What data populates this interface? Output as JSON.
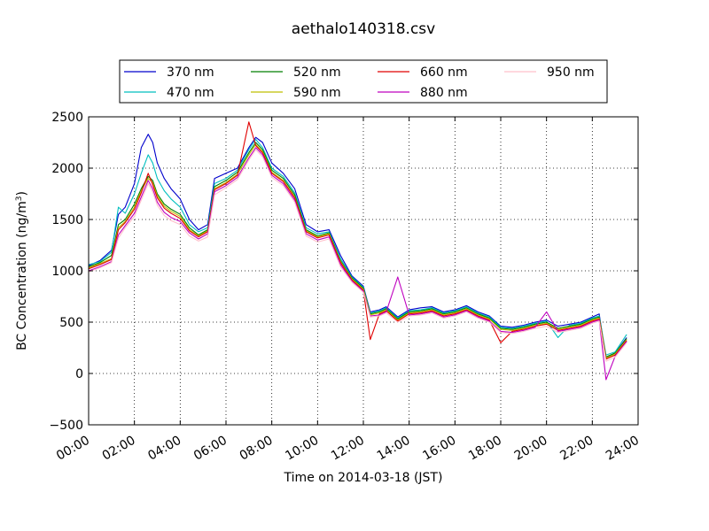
{
  "chart_data": {
    "type": "line",
    "title": "aethalo140318.csv",
    "xlabel": "Time on 2014-03-18 (JST)",
    "ylabel_main": "BC Concentration (ng/m",
    "ylabel_sup": "3",
    "ylabel_close": ")",
    "xlim": [
      0,
      24
    ],
    "ylim": [
      -500,
      2500
    ],
    "grid": true,
    "legend_position": "top",
    "x_ticks": [
      0,
      2,
      4,
      6,
      8,
      10,
      12,
      14,
      16,
      18,
      20,
      22,
      24
    ],
    "x_tick_labels": [
      "00:00",
      "02:00",
      "04:00",
      "06:00",
      "08:00",
      "10:00",
      "12:00",
      "14:00",
      "16:00",
      "18:00",
      "20:00",
      "22:00",
      "24:00"
    ],
    "y_ticks": [
      -500,
      0,
      500,
      1000,
      1500,
      2000,
      2500
    ],
    "y_tick_labels": [
      "−500",
      "0",
      "500",
      "1000",
      "1500",
      "2000",
      "2500"
    ],
    "series": [
      {
        "name": "370 nm",
        "color": "#0000cc",
        "x": [
          0,
          0.5,
          1,
          1.3,
          1.6,
          2,
          2.3,
          2.6,
          2.8,
          3,
          3.3,
          3.6,
          4,
          4.4,
          4.8,
          5.2,
          5.5,
          6,
          6.5,
          7,
          7.3,
          7.6,
          8,
          8.5,
          9,
          9.5,
          10,
          10.5,
          11,
          11.5,
          12,
          12.3,
          12.7,
          13,
          13.5,
          14,
          14.5,
          15,
          15.5,
          16,
          16.5,
          17,
          17.5,
          18,
          18.5,
          19,
          19.5,
          20,
          20.5,
          21,
          21.5,
          22,
          22.3,
          22.6,
          23,
          23.5
        ],
        "values": [
          1050,
          1100,
          1200,
          1550,
          1620,
          1850,
          2200,
          2330,
          2250,
          2050,
          1900,
          1800,
          1700,
          1500,
          1400,
          1450,
          1900,
          1950,
          2000,
          2200,
          2300,
          2250,
          2050,
          1950,
          1800,
          1450,
          1380,
          1400,
          1150,
          950,
          850,
          600,
          620,
          650,
          550,
          620,
          640,
          650,
          600,
          620,
          660,
          600,
          560,
          460,
          450,
          470,
          500,
          520,
          460,
          480,
          500,
          550,
          580,
          150,
          200,
          350
        ]
      },
      {
        "name": "470 nm",
        "color": "#00bfbf",
        "x": [
          0,
          0.5,
          1,
          1.3,
          1.6,
          2,
          2.3,
          2.6,
          2.8,
          3,
          3.3,
          3.6,
          4,
          4.4,
          4.8,
          5.2,
          5.5,
          6,
          6.5,
          7,
          7.3,
          7.6,
          8,
          8.5,
          9,
          9.5,
          10,
          10.5,
          11,
          11.5,
          12,
          12.3,
          12.7,
          13,
          13.5,
          14,
          14.5,
          15,
          15.5,
          16,
          16.5,
          17,
          17.5,
          18,
          18.5,
          19,
          19.5,
          20,
          20.5,
          21,
          21.5,
          22,
          22.3,
          22.6,
          23,
          23.5
        ],
        "values": [
          1060,
          1090,
          1180,
          1620,
          1560,
          1750,
          1950,
          2130,
          2050,
          1900,
          1780,
          1700,
          1620,
          1450,
          1380,
          1420,
          1850,
          1900,
          1980,
          2180,
          2280,
          2200,
          2000,
          1920,
          1760,
          1420,
          1360,
          1380,
          1120,
          940,
          840,
          590,
          610,
          640,
          540,
          610,
          620,
          640,
          590,
          610,
          650,
          590,
          550,
          450,
          440,
          460,
          490,
          510,
          350,
          470,
          490,
          540,
          560,
          180,
          210,
          380
        ]
      },
      {
        "name": "520 nm",
        "color": "#007f00",
        "x": [
          0,
          0.5,
          1,
          1.3,
          1.6,
          2,
          2.3,
          2.6,
          2.8,
          3,
          3.3,
          3.6,
          4,
          4.4,
          4.8,
          5.2,
          5.5,
          6,
          6.5,
          7,
          7.3,
          7.6,
          8,
          8.5,
          9,
          9.5,
          10,
          10.5,
          11,
          11.5,
          12,
          12.3,
          12.7,
          13,
          13.5,
          14,
          14.5,
          15,
          15.5,
          16,
          16.5,
          17,
          17.5,
          18,
          18.5,
          19,
          19.5,
          20,
          20.5,
          21,
          21.5,
          22,
          22.3,
          22.6,
          23,
          23.5
        ],
        "values": [
          1040,
          1080,
          1150,
          1450,
          1500,
          1650,
          1800,
          1920,
          1880,
          1750,
          1650,
          1600,
          1550,
          1420,
          1350,
          1400,
          1820,
          1880,
          1960,
          2150,
          2250,
          2180,
          1980,
          1900,
          1740,
          1400,
          1340,
          1370,
          1100,
          930,
          830,
          580,
          600,
          630,
          530,
          600,
          610,
          630,
          580,
          600,
          640,
          580,
          540,
          440,
          430,
          450,
          480,
          500,
          440,
          460,
          480,
          530,
          550,
          160,
          200,
          340
        ]
      },
      {
        "name": "590 nm",
        "color": "#bfbf00",
        "x": [
          0,
          0.5,
          1,
          1.3,
          1.6,
          2,
          2.3,
          2.6,
          2.8,
          3,
          3.3,
          3.6,
          4,
          4.4,
          4.8,
          5.2,
          5.5,
          6,
          6.5,
          7,
          7.3,
          7.6,
          8,
          8.5,
          9,
          9.5,
          10,
          10.5,
          11,
          11.5,
          12,
          12.3,
          12.7,
          13,
          13.5,
          14,
          14.5,
          15,
          15.5,
          16,
          16.5,
          17,
          17.5,
          18,
          18.5,
          19,
          19.5,
          20,
          20.5,
          21,
          21.5,
          22,
          22.3,
          22.6,
          23,
          23.5
        ],
        "values": [
          1030,
          1070,
          1120,
          1420,
          1480,
          1620,
          1780,
          1900,
          1860,
          1730,
          1630,
          1580,
          1530,
          1400,
          1340,
          1390,
          1800,
          1860,
          1940,
          2130,
          2230,
          2160,
          1960,
          1880,
          1720,
          1390,
          1330,
          1360,
          1090,
          920,
          820,
          570,
          590,
          620,
          520,
          590,
          600,
          620,
          570,
          590,
          630,
          570,
          530,
          430,
          420,
          440,
          470,
          490,
          430,
          450,
          470,
          520,
          540,
          150,
          190,
          330
        ]
      },
      {
        "name": "660 nm",
        "color": "#e00000",
        "x": [
          0,
          0.5,
          1,
          1.3,
          1.6,
          2,
          2.3,
          2.6,
          2.8,
          3,
          3.3,
          3.6,
          4,
          4.4,
          4.8,
          5.2,
          5.5,
          6,
          6.5,
          7,
          7.3,
          7.6,
          8,
          8.5,
          9,
          9.5,
          10,
          10.5,
          11,
          11.5,
          12,
          12.3,
          12.7,
          13,
          13.5,
          14,
          14.5,
          15,
          15.5,
          16,
          16.5,
          17,
          17.5,
          18,
          18.5,
          19,
          19.5,
          20,
          20.5,
          21,
          21.5,
          22,
          22.3,
          22.6,
          23,
          23.5
        ],
        "values": [
          1020,
          1060,
          1110,
          1400,
          1470,
          1600,
          1760,
          1950,
          1840,
          1710,
          1610,
          1560,
          1510,
          1390,
          1330,
          1380,
          1790,
          1850,
          1930,
          2450,
          2220,
          2150,
          1950,
          1870,
          1710,
          1380,
          1320,
          1350,
          1080,
          910,
          810,
          330,
          580,
          610,
          510,
          580,
          590,
          610,
          560,
          580,
          620,
          560,
          520,
          300,
          410,
          430,
          460,
          480,
          420,
          440,
          460,
          510,
          530,
          140,
          180,
          320
        ]
      },
      {
        "name": "880 nm",
        "color": "#bf00bf",
        "x": [
          0,
          0.5,
          1,
          1.3,
          1.6,
          2,
          2.3,
          2.6,
          2.8,
          3,
          3.3,
          3.6,
          4,
          4.4,
          4.8,
          5.2,
          5.5,
          6,
          6.5,
          7,
          7.3,
          7.6,
          8,
          8.5,
          9,
          9.5,
          10,
          10.5,
          11,
          11.5,
          12,
          12.3,
          12.7,
          13,
          13.5,
          14,
          14.5,
          15,
          15.5,
          16,
          16.5,
          17,
          17.5,
          18,
          18.5,
          19,
          19.5,
          20,
          20.5,
          21,
          21.5,
          22,
          22.3,
          22.6,
          23,
          23.5
        ],
        "values": [
          1000,
          1040,
          1090,
          1350,
          1440,
          1560,
          1720,
          1880,
          1800,
          1670,
          1570,
          1520,
          1480,
          1370,
          1310,
          1360,
          1770,
          1830,
          1910,
          2100,
          2200,
          2130,
          1930,
          1850,
          1690,
          1360,
          1300,
          1330,
          1060,
          900,
          800,
          560,
          570,
          600,
          940,
          570,
          580,
          600,
          550,
          570,
          610,
          550,
          510,
          410,
          400,
          420,
          450,
          600,
          410,
          430,
          450,
          500,
          520,
          -60,
          170,
          310
        ]
      },
      {
        "name": "950 nm",
        "color": "#ffc0cb",
        "x": [
          0,
          0.5,
          1,
          1.3,
          1.6,
          2,
          2.3,
          2.6,
          2.8,
          3,
          3.3,
          3.6,
          4,
          4.4,
          4.8,
          5.2,
          5.5,
          6,
          6.5,
          7,
          7.3,
          7.6,
          8,
          8.5,
          9,
          9.5,
          10,
          10.5,
          11,
          11.5,
          12,
          12.3,
          12.7,
          13,
          13.5,
          14,
          14.5,
          15,
          15.5,
          16,
          16.5,
          17,
          17.5,
          18,
          18.5,
          19,
          19.5,
          20,
          20.5,
          21,
          21.5,
          22,
          22.3,
          22.6,
          23,
          23.5
        ],
        "values": [
          990,
          1030,
          1080,
          1320,
          1420,
          1530,
          1690,
          1850,
          1770,
          1640,
          1540,
          1490,
          1450,
          1340,
          1290,
          1330,
          1740,
          1810,
          1890,
          2080,
          2180,
          2110,
          1910,
          1830,
          1670,
          1340,
          1280,
          1310,
          1040,
          890,
          790,
          550,
          560,
          590,
          500,
          560,
          570,
          590,
          540,
          560,
          600,
          540,
          500,
          400,
          390,
          410,
          440,
          460,
          400,
          420,
          440,
          490,
          510,
          120,
          160,
          300
        ]
      }
    ]
  }
}
